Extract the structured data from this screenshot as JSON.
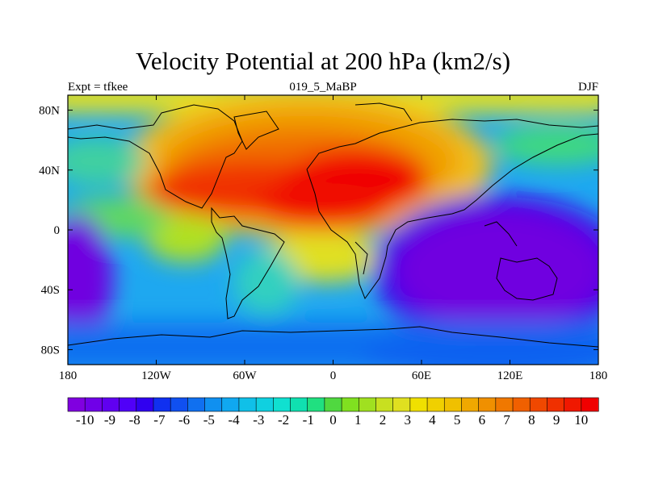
{
  "title": "Velocity Potential at 200 hPa (km2/s)",
  "left_string": "Expt = tfkee",
  "center_string": "019_5_MaBP",
  "right_string": "DJF",
  "map": {
    "projection": "cylindrical-equidistant",
    "lon_range": [
      -180,
      180
    ],
    "lat_range": [
      -90,
      90
    ],
    "x_tick_labels": [
      "180",
      "120W",
      "60W",
      "0",
      "60E",
      "120E",
      "180"
    ],
    "x_tick_lons": [
      -180,
      -120,
      -60,
      0,
      60,
      120,
      180
    ],
    "y_tick_labels": [
      "80N",
      "40N",
      "0",
      "40S",
      "80S"
    ],
    "y_tick_lats": [
      80,
      40,
      0,
      -40,
      -80
    ]
  },
  "colorbar": {
    "labels": [
      "-10",
      "-9",
      "-8",
      "-7",
      "-6",
      "-5",
      "-4",
      "-3",
      "-2",
      "-1",
      "0",
      "1",
      "2",
      "3",
      "4",
      "5",
      "6",
      "7",
      "8",
      "9",
      "10"
    ],
    "colors": [
      "#8000e0",
      "#7000e8",
      "#6000f0",
      "#5000f8",
      "#3000f0",
      "#1030f0",
      "#1050f0",
      "#1070f0",
      "#1090f0",
      "#10a8f0",
      "#10c0e8",
      "#10d0e0",
      "#10e0d0",
      "#10e0b0",
      "#20e080",
      "#50d840",
      "#80e020",
      "#a0e020",
      "#c8e020",
      "#e0e020",
      "#f0e000",
      "#f0d000",
      "#f0c000",
      "#f0a800",
      "#f09000",
      "#f07800",
      "#f06000",
      "#f04800",
      "#f03000",
      "#f01800",
      "#f00000"
    ]
  }
}
